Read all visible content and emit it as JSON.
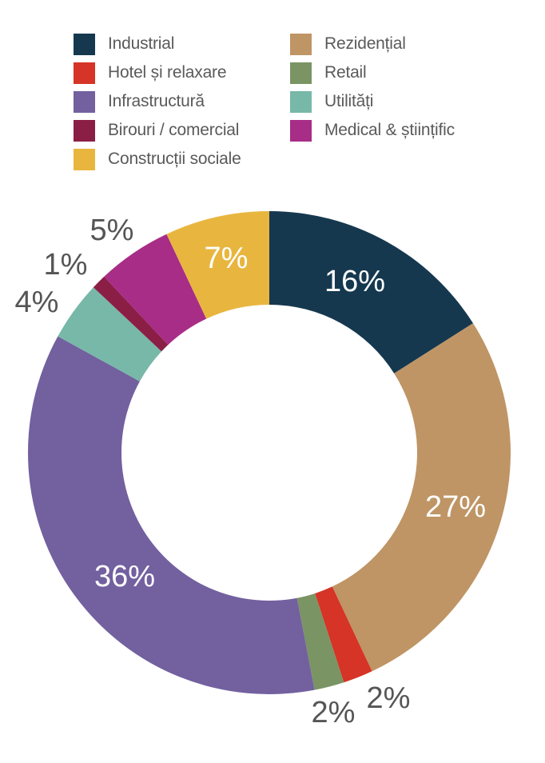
{
  "chart_data": {
    "type": "pie",
    "donut": true,
    "legend_position": "top",
    "categories": [
      "Industrial",
      "Rezidențial",
      "Hotel și relaxare",
      "Retail",
      "Infrastructură",
      "Utilități",
      "Birouri / comercial",
      "Medical & științific",
      "Construcții sociale"
    ],
    "slices": [
      {
        "name": "Industrial",
        "value": 16,
        "label": "16%",
        "color": "#15384f"
      },
      {
        "name": "Rezidențial",
        "value": 27,
        "label": "27%",
        "color": "#bf9565"
      },
      {
        "name": "Hotel și relaxare",
        "value": 2,
        "label": "2%",
        "color": "#d53426"
      },
      {
        "name": "Retail",
        "value": 2,
        "label": "2%",
        "color": "#7a9464"
      },
      {
        "name": "Infrastructură",
        "value": 36,
        "label": "36%",
        "color": "#72609f"
      },
      {
        "name": "Utilități",
        "value": 4,
        "label": "4%",
        "color": "#77b8a8"
      },
      {
        "name": "Birouri / comercial",
        "value": 1,
        "label": "1%",
        "color": "#8b1e45"
      },
      {
        "name": "Medical & științific",
        "value": 5,
        "label": "5%",
        "color": "#a82d87"
      },
      {
        "name": "Construcții sociale",
        "value": 7,
        "label": "7%",
        "color": "#e8b63f"
      }
    ]
  }
}
